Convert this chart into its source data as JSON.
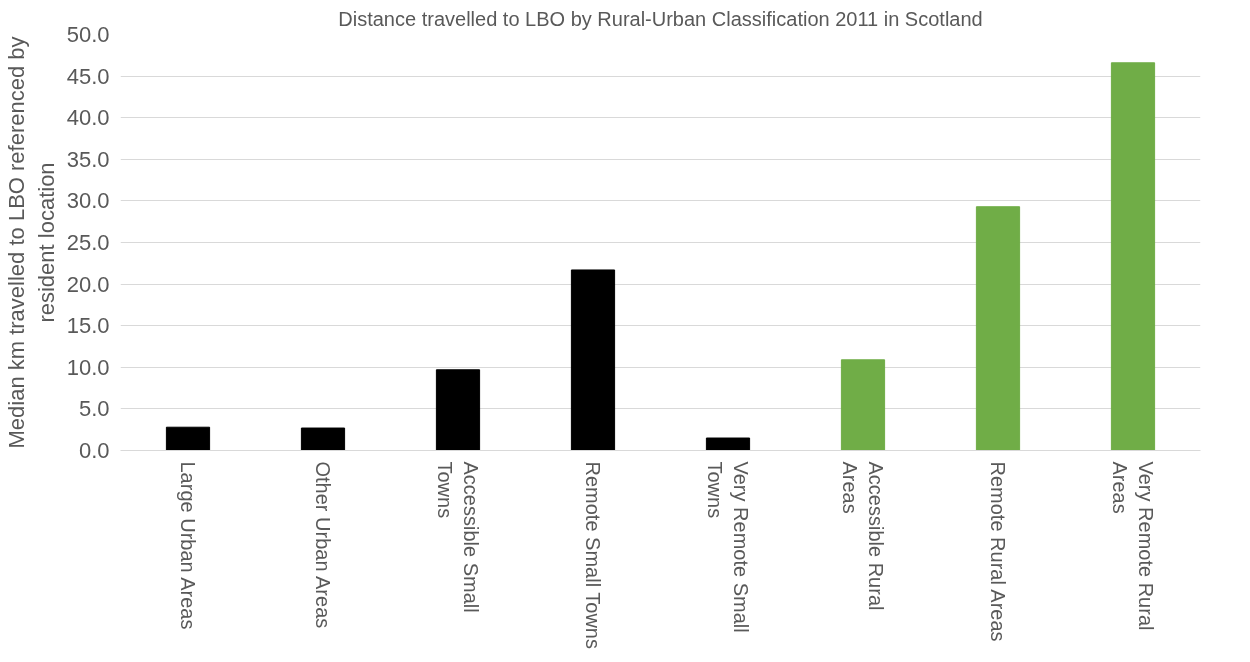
{
  "chart_data": {
    "type": "bar",
    "title": "Distance travelled to LBO by Rural-Urban Classification 2011 in Scotland",
    "ylabel": "Median km travelled to LBO referenced by resident location",
    "categories": [
      "Large Urban Areas",
      "Other Urban Areas",
      "Accessible Small Towns",
      "Remote Small Towns",
      "Very Remote Small Towns",
      "Accessible Rural Areas",
      "Remote Rural Areas",
      "Very Remote Rural Areas"
    ],
    "values": [
      2.8,
      2.7,
      9.7,
      21.7,
      1.5,
      10.9,
      29.3,
      46.6
    ],
    "colors": [
      "#000000",
      "#000000",
      "#000000",
      "#000000",
      "#000000",
      "#70ad47",
      "#70ad47",
      "#70ad47"
    ],
    "ylim": [
      0,
      50
    ],
    "yticks": [
      {
        "value": 0,
        "label": "0.0"
      },
      {
        "value": 5,
        "label": "5.0"
      },
      {
        "value": 10,
        "label": "10.0"
      },
      {
        "value": 15,
        "label": "15.0"
      },
      {
        "value": 20,
        "label": "20.0"
      },
      {
        "value": 25,
        "label": "25.0"
      },
      {
        "value": 30,
        "label": "30.0"
      },
      {
        "value": 35,
        "label": "35.0"
      },
      {
        "value": 40,
        "label": "40.0"
      },
      {
        "value": 45,
        "label": "45.0"
      },
      {
        "value": 50,
        "label": "50.0"
      }
    ],
    "grid": "y"
  }
}
